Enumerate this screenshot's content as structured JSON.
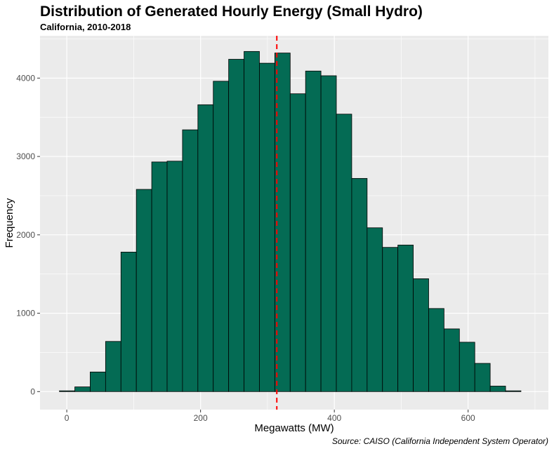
{
  "chart_data": {
    "type": "bar",
    "title": "Distribution of Generated Hourly Energy (Small Hydro)",
    "subtitle": "California, 2010-2018",
    "xlabel": "Megawatts (MW)",
    "ylabel": "Frequency",
    "caption": "Source: CAISO (California Independent System Operator)",
    "xlim": [
      -40,
      720
    ],
    "ylim": [
      -230,
      4540
    ],
    "x_ticks": [
      0,
      200,
      400,
      600
    ],
    "y_ticks": [
      0,
      1000,
      2000,
      3000,
      4000
    ],
    "bin_width": 23,
    "bins": [
      {
        "x0": -11,
        "x1": 12,
        "count": 10
      },
      {
        "x0": 12,
        "x1": 35,
        "count": 60
      },
      {
        "x0": 35,
        "x1": 58,
        "count": 250
      },
      {
        "x0": 58,
        "x1": 81,
        "count": 640
      },
      {
        "x0": 81,
        "x1": 104,
        "count": 1780
      },
      {
        "x0": 104,
        "x1": 127,
        "count": 2580
      },
      {
        "x0": 127,
        "x1": 150,
        "count": 2930
      },
      {
        "x0": 150,
        "x1": 173,
        "count": 2940
      },
      {
        "x0": 173,
        "x1": 196,
        "count": 3340
      },
      {
        "x0": 196,
        "x1": 219,
        "count": 3660
      },
      {
        "x0": 219,
        "x1": 242,
        "count": 3960
      },
      {
        "x0": 242,
        "x1": 265,
        "count": 4240
      },
      {
        "x0": 265,
        "x1": 288,
        "count": 4340
      },
      {
        "x0": 288,
        "x1": 311,
        "count": 4190
      },
      {
        "x0": 311,
        "x1": 334,
        "count": 4320
      },
      {
        "x0": 334,
        "x1": 357,
        "count": 3800
      },
      {
        "x0": 357,
        "x1": 380,
        "count": 4090
      },
      {
        "x0": 380,
        "x1": 403,
        "count": 4030
      },
      {
        "x0": 403,
        "x1": 426,
        "count": 3540
      },
      {
        "x0": 426,
        "x1": 449,
        "count": 2720
      },
      {
        "x0": 449,
        "x1": 472,
        "count": 2090
      },
      {
        "x0": 472,
        "x1": 495,
        "count": 1840
      },
      {
        "x0": 495,
        "x1": 518,
        "count": 1870
      },
      {
        "x0": 518,
        "x1": 541,
        "count": 1440
      },
      {
        "x0": 541,
        "x1": 564,
        "count": 1060
      },
      {
        "x0": 564,
        "x1": 587,
        "count": 800
      },
      {
        "x0": 587,
        "x1": 610,
        "count": 630
      },
      {
        "x0": 610,
        "x1": 633,
        "count": 360
      },
      {
        "x0": 633,
        "x1": 656,
        "count": 70
      },
      {
        "x0": 656,
        "x1": 679,
        "count": 10
      }
    ],
    "reference_line": {
      "x": 314,
      "style": "dashed",
      "color": "#ff0000"
    },
    "bar_fill": "#046b54",
    "bar_stroke": "#000000",
    "panel_background": "#ebebeb",
    "grid": true
  }
}
